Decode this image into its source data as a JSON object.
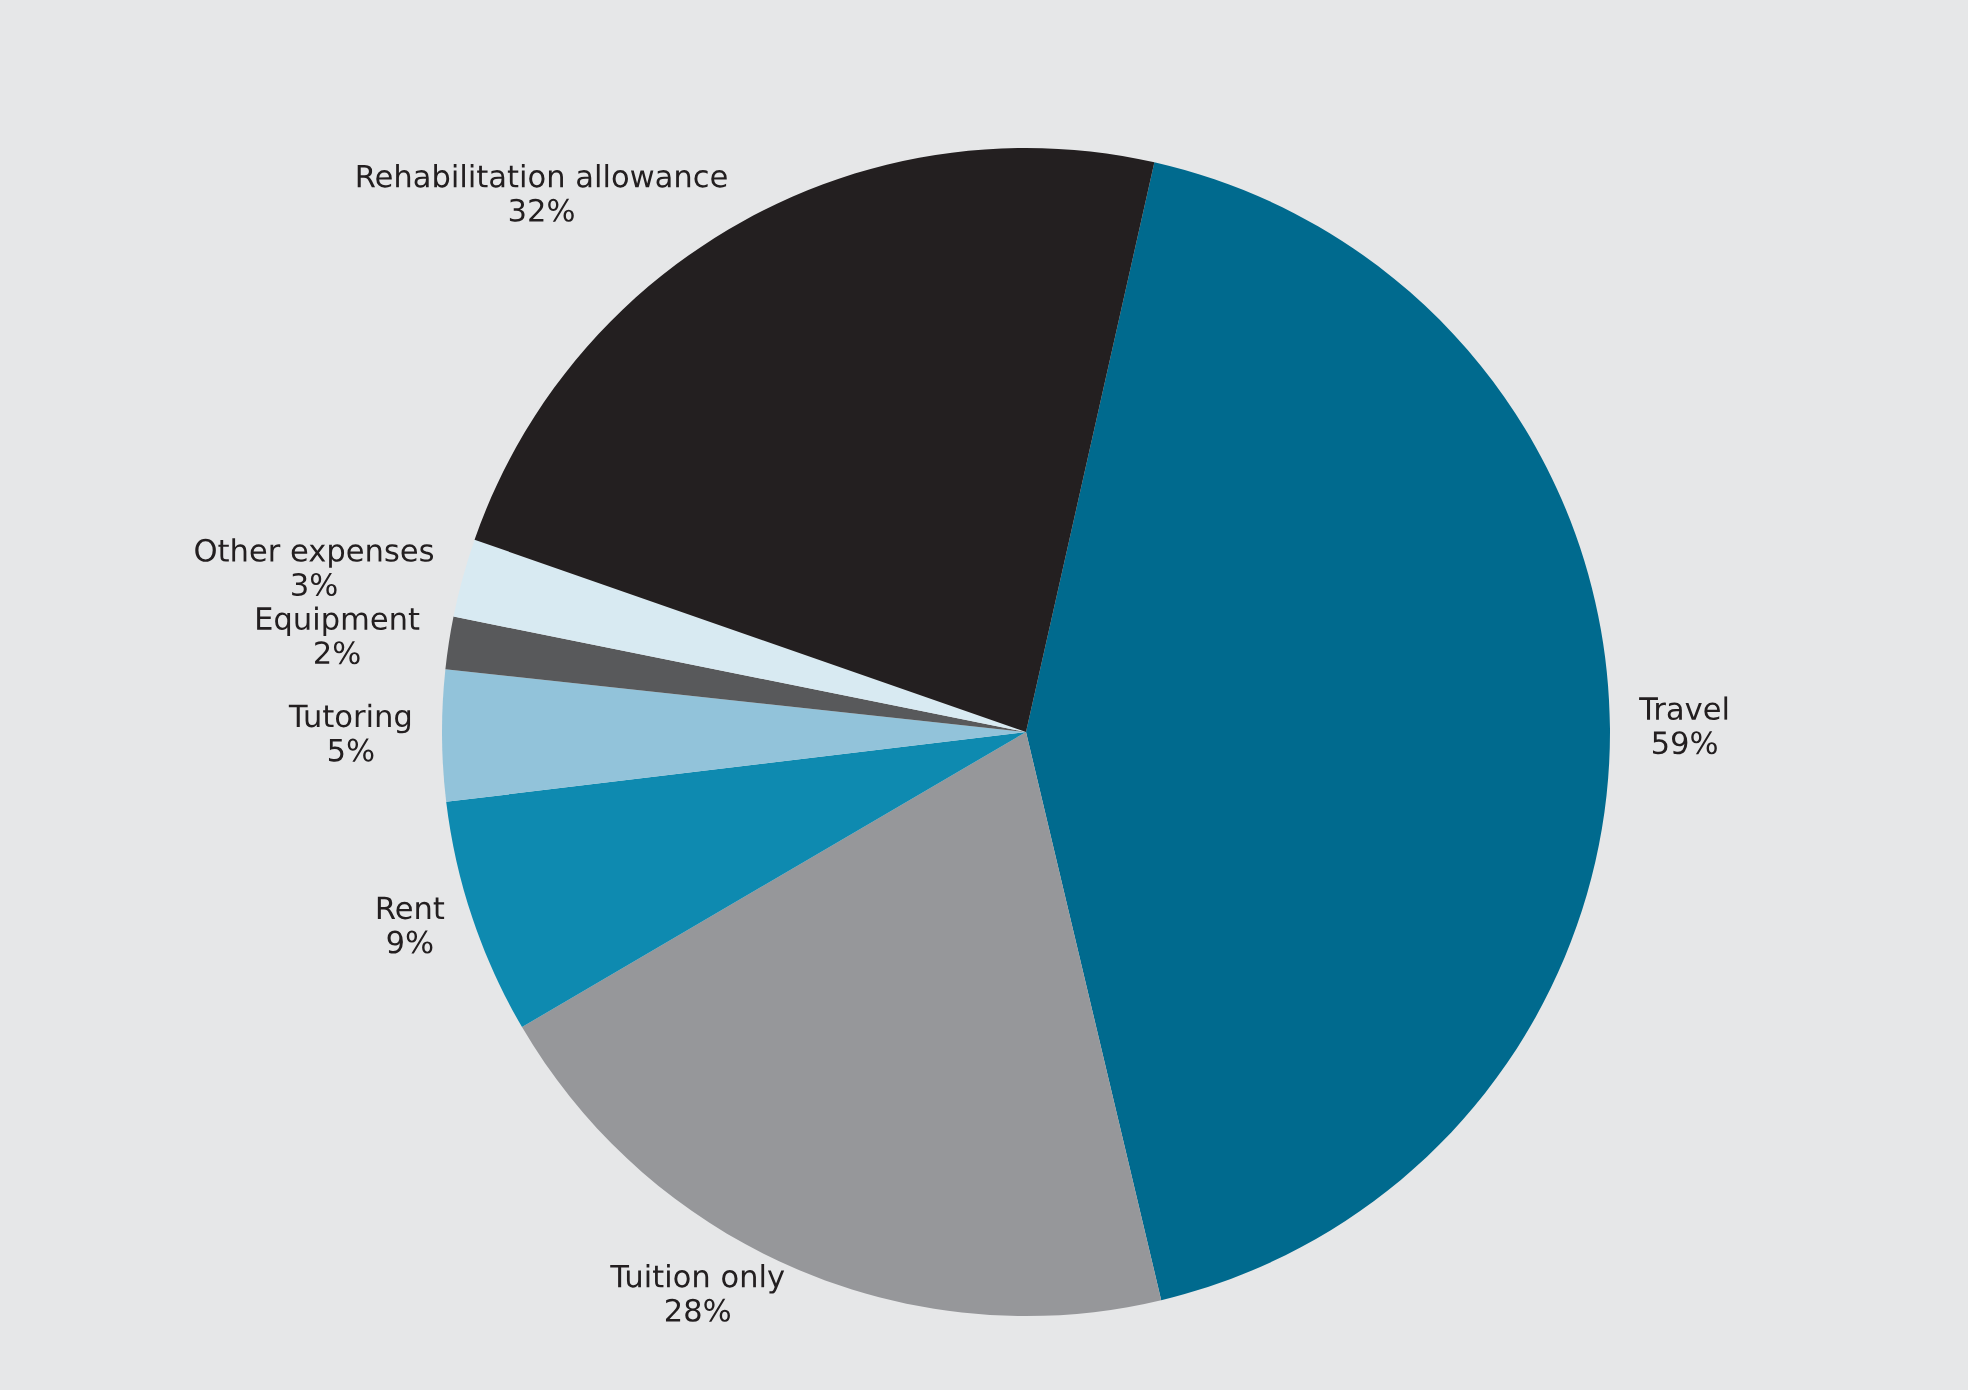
{
  "chart_data": {
    "type": "pie",
    "categories": [
      "Travel",
      "Tuition only",
      "Rent",
      "Tutoring",
      "Equipment",
      "Other expenses",
      "Rehabilitation allowance"
    ],
    "values": [
      59,
      28,
      9,
      5,
      2,
      3,
      32
    ],
    "value_labels": [
      "59%",
      "28%",
      "9%",
      "5%",
      "2%",
      "3%",
      "32%"
    ],
    "colors": [
      "#006a8e",
      "#96979a",
      "#0e8ab0",
      "#92c3da",
      "#58595b",
      "#d8eaf2",
      "#231f20"
    ],
    "legend": false
  }
}
